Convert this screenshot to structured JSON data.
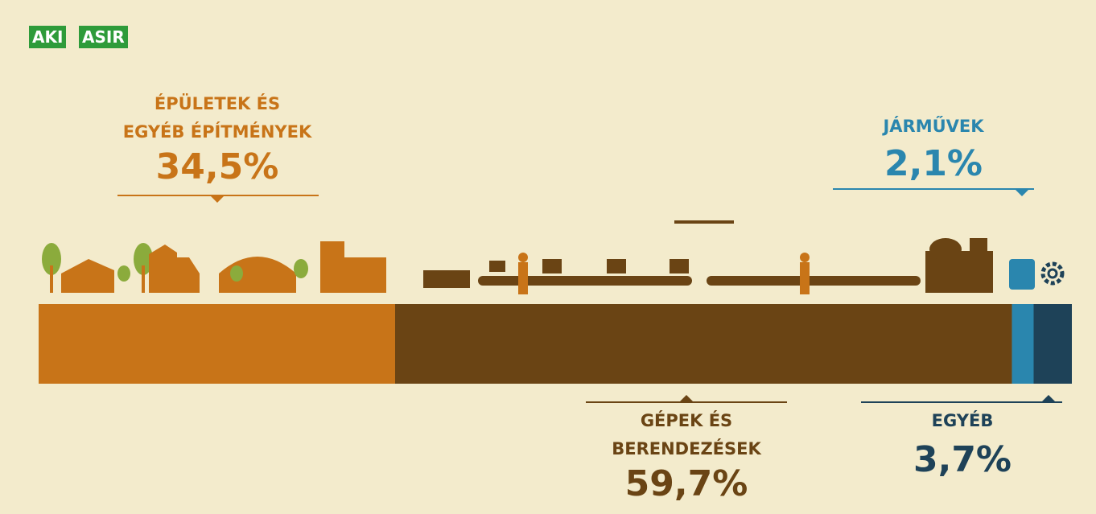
{
  "logo": {
    "left": "AKI",
    "right": "ASIR"
  },
  "chart_data": {
    "type": "stacked-bar",
    "series": [
      {
        "name": "ÉPÜLETEK ÉS EGYÉB ÉPÍTMÉNYEK",
        "color": "#c87418",
        "values": [
          34.5
        ],
        "value_labels": [
          "34,5%"
        ]
      },
      {
        "name": "GÉPEK ÉS BERENDEZÉSEK",
        "color": "#6a4414",
        "values": [
          59.7
        ],
        "value_labels": [
          "59,7%"
        ]
      },
      {
        "name": "JÁRMŰVEK",
        "color": "#2a86ae",
        "values": [
          2.1
        ],
        "value_labels": [
          "2,1%"
        ]
      },
      {
        "name": "EGYÉB",
        "color": "#1e4258",
        "values": [
          3.7
        ],
        "value_labels": [
          "3,7%"
        ]
      }
    ]
  }
}
